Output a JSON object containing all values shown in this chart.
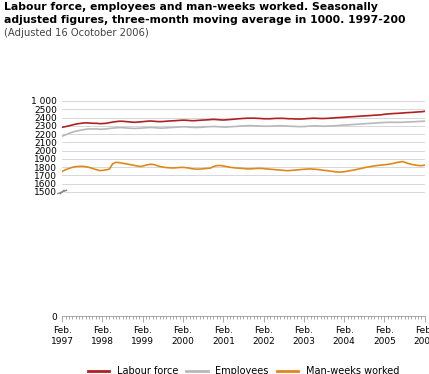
{
  "title_line1": "Labour force, employees and man-weeks worked. Seasonally",
  "title_line2": "adjusted figures, three-month moving average in 1000. 1997-200",
  "subtitle": "(Adjusted 16 Ocotober 2006)",
  "labour_force_color": "#b02020",
  "employees_color": "#b8b8b8",
  "man_weeks_color": "#e08818",
  "legend_labels": [
    "Labour force",
    "Employees",
    "Man-weeks worked"
  ],
  "background_color": "#ffffff",
  "grid_color": "#d0d0d8",
  "labour_force": [
    2282,
    2290,
    2298,
    2308,
    2318,
    2325,
    2330,
    2335,
    2335,
    2332,
    2330,
    2330,
    2325,
    2328,
    2330,
    2338,
    2345,
    2350,
    2355,
    2355,
    2352,
    2348,
    2345,
    2342,
    2345,
    2348,
    2352,
    2355,
    2358,
    2355,
    2352,
    2350,
    2352,
    2355,
    2358,
    2360,
    2362,
    2365,
    2368,
    2368,
    2365,
    2362,
    2362,
    2365,
    2368,
    2370,
    2372,
    2375,
    2378,
    2375,
    2372,
    2370,
    2372,
    2375,
    2378,
    2382,
    2385,
    2388,
    2390,
    2392,
    2392,
    2392,
    2390,
    2388,
    2385,
    2385,
    2385,
    2388,
    2390,
    2390,
    2390,
    2388,
    2385,
    2385,
    2382,
    2382,
    2382,
    2385,
    2388,
    2390,
    2392,
    2390,
    2388,
    2388,
    2390,
    2392,
    2395,
    2398,
    2400,
    2402,
    2405,
    2408,
    2410,
    2412,
    2415,
    2418,
    2420,
    2422,
    2425,
    2428,
    2430,
    2432,
    2438,
    2442,
    2445,
    2448,
    2450,
    2452,
    2455,
    2458,
    2460,
    2462,
    2465,
    2468,
    2470,
    2475
  ],
  "employees": [
    2175,
    2190,
    2205,
    2220,
    2232,
    2240,
    2248,
    2255,
    2260,
    2262,
    2262,
    2262,
    2258,
    2260,
    2262,
    2268,
    2272,
    2275,
    2278,
    2278,
    2275,
    2272,
    2270,
    2268,
    2270,
    2272,
    2275,
    2278,
    2280,
    2278,
    2275,
    2272,
    2272,
    2275,
    2278,
    2280,
    2282,
    2285,
    2288,
    2288,
    2285,
    2282,
    2280,
    2280,
    2282,
    2285,
    2288,
    2290,
    2292,
    2290,
    2288,
    2285,
    2285,
    2288,
    2290,
    2292,
    2295,
    2298,
    2300,
    2302,
    2302,
    2300,
    2298,
    2296,
    2295,
    2295,
    2295,
    2298,
    2300,
    2300,
    2300,
    2298,
    2295,
    2294,
    2292,
    2290,
    2290,
    2292,
    2295,
    2298,
    2300,
    2298,
    2296,
    2295,
    2296,
    2298,
    2300,
    2302,
    2305,
    2308,
    2310,
    2312,
    2315,
    2318,
    2320,
    2322,
    2325,
    2328,
    2330,
    2332,
    2335,
    2338,
    2340,
    2342,
    2342,
    2342,
    2342,
    2342,
    2342,
    2345,
    2346,
    2348,
    2350,
    2352,
    2354,
    2356
  ],
  "man_weeks": [
    1748,
    1768,
    1782,
    1795,
    1805,
    1808,
    1810,
    1808,
    1802,
    1792,
    1780,
    1768,
    1758,
    1762,
    1768,
    1778,
    1840,
    1858,
    1855,
    1848,
    1842,
    1835,
    1828,
    1820,
    1812,
    1808,
    1818,
    1828,
    1835,
    1832,
    1820,
    1808,
    1800,
    1795,
    1792,
    1790,
    1792,
    1795,
    1798,
    1795,
    1790,
    1782,
    1778,
    1775,
    1778,
    1782,
    1785,
    1788,
    1808,
    1818,
    1820,
    1815,
    1808,
    1800,
    1795,
    1790,
    1788,
    1785,
    1782,
    1778,
    1780,
    1782,
    1785,
    1785,
    1782,
    1778,
    1775,
    1772,
    1768,
    1765,
    1762,
    1758,
    1758,
    1762,
    1765,
    1768,
    1772,
    1775,
    1778,
    1778,
    1775,
    1772,
    1768,
    1762,
    1758,
    1752,
    1748,
    1742,
    1740,
    1742,
    1748,
    1755,
    1762,
    1768,
    1778,
    1785,
    1795,
    1802,
    1808,
    1815,
    1820,
    1825,
    1828,
    1832,
    1838,
    1845,
    1855,
    1862,
    1868,
    1855,
    1842,
    1832,
    1825,
    1820,
    1818,
    1825
  ]
}
